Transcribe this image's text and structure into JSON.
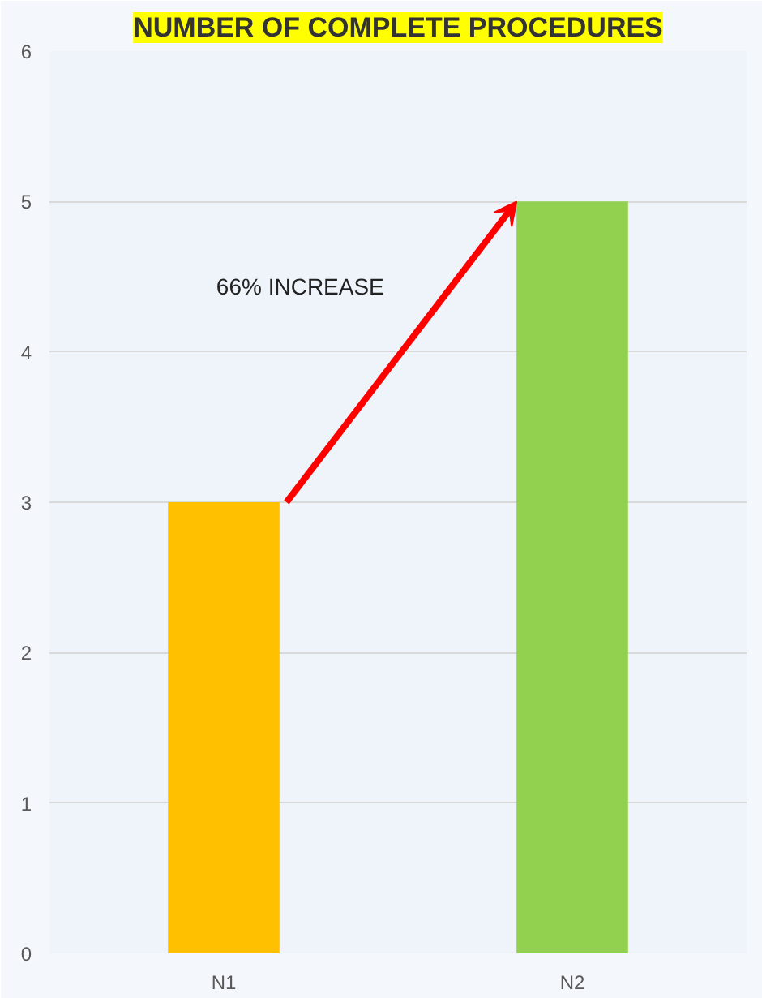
{
  "chart_data": {
    "type": "bar",
    "title": "NUMBER OF COMPLETE PROCEDURES",
    "categories": [
      "N1",
      "N2"
    ],
    "values": [
      3,
      5
    ],
    "colors": [
      "#ffc000",
      "#92d050"
    ],
    "ylim": [
      0,
      6
    ],
    "yticks": [
      0,
      1,
      2,
      3,
      4,
      5,
      6
    ],
    "grid": "y",
    "annotations": [
      "66% INCREASE"
    ]
  }
}
